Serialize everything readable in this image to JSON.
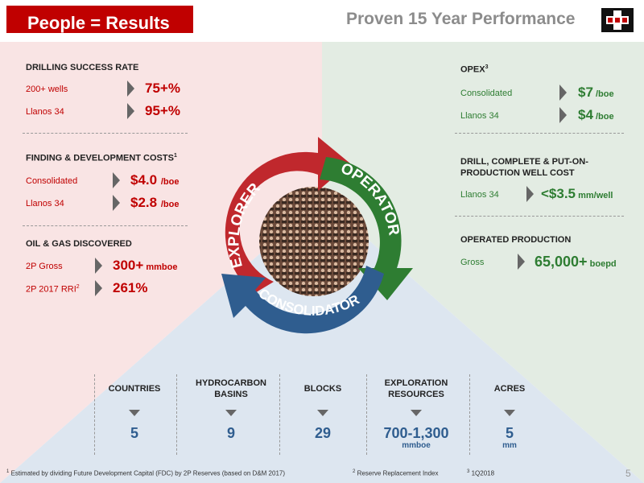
{
  "header": {
    "title": "People = Results",
    "subtitle": "Proven 15 Year Performance"
  },
  "colors": {
    "red": "#c00000",
    "green": "#2e7d32",
    "blue": "#2f5d8f",
    "bg_red": "#f9e4e4",
    "bg_green": "#e3ece3",
    "bg_blue": "#dde6f0"
  },
  "left": {
    "drilling": {
      "title": "DRILLING SUCCESS RATE",
      "rows": [
        {
          "label": "200+ wells",
          "value": "75+%"
        },
        {
          "label": "Llanos 34",
          "value": "95+%"
        }
      ]
    },
    "fd": {
      "title": "FINDING & DEVELOPMENT COSTS",
      "sup": "1",
      "rows": [
        {
          "label": "Consolidated",
          "value": "$4.0",
          "unit": "/boe"
        },
        {
          "label": "Llanos 34",
          "value": "$2.8",
          "unit": "/boe"
        }
      ]
    },
    "oil": {
      "title": "OIL & GAS  DISCOVERED",
      "rows": [
        {
          "label": "2P Gross",
          "value": "300+",
          "unit": " mmboe"
        },
        {
          "label": "2P 2017 RRI",
          "label_sup": "2",
          "value": "261%"
        }
      ]
    }
  },
  "right": {
    "opex": {
      "title": "OPEX",
      "sup": "3",
      "rows": [
        {
          "label": "Consolidated",
          "value": "$7",
          "unit": " /boe"
        },
        {
          "label": "Llanos 34",
          "value": "$4",
          "unit": " /boe"
        }
      ]
    },
    "drill": {
      "title_line1": "DRILL, COMPLETE & PUT-ON-",
      "title_line2": "PRODUCTION WELL COST",
      "rows": [
        {
          "label": "Llanos 34",
          "value": "<$3.5",
          "unit": " mm/well"
        }
      ]
    },
    "operated": {
      "title": "OPERATED PRODUCTION",
      "rows": [
        {
          "label": "Gross",
          "value": "65,000+",
          "unit": " boepd"
        }
      ]
    }
  },
  "cycle": {
    "explorer": "EXPLORER",
    "operator": "OPERATOR",
    "consolidator": "CONSOLIDATOR"
  },
  "stats": [
    {
      "label": "COUNTRIES",
      "value": "5",
      "sub": ""
    },
    {
      "label": "HYDROCARBON BASINS",
      "value": "9",
      "sub": ""
    },
    {
      "label": "BLOCKS",
      "value": "29",
      "sub": ""
    },
    {
      "label": "EXPLORATION RESOURCES",
      "value": "700-1,300",
      "sub": "mmboe"
    },
    {
      "label": "ACRES",
      "value": "5",
      "sub": "mm"
    }
  ],
  "footnotes": {
    "fn1_sup": "1",
    "fn1": " Estimated by dividing Future Development Capital (FDC) by 2P Reserves (based on D&M 2017)",
    "fn2_sup": "2",
    "fn2": " Reserve Replacement Index",
    "fn3_sup": "3",
    "fn3": " 1Q2018"
  },
  "page_number": "5"
}
